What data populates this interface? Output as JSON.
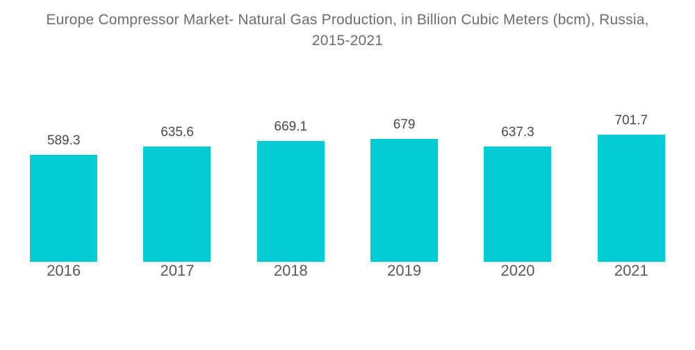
{
  "title": "Europe Compressor Market- Natural Gas Production, in Billion Cubic Meters (bcm), Russia, 2015-2021",
  "colors": {
    "bar": "#02cbd3",
    "title_text": "#6d6d6d",
    "value_label_text": "#4a4a4a",
    "year_label_text": "#595959",
    "background": "#ffffff"
  },
  "chart_data": {
    "type": "bar",
    "title": "Europe Compressor Market- Natural Gas Production, in Billion Cubic Meters (bcm), Russia, 2015-2021",
    "categories": [
      "2016",
      "2017",
      "2018",
      "2019",
      "2020",
      "2021"
    ],
    "values": [
      589.3,
      635.6,
      669.1,
      679,
      637.3,
      701.7
    ],
    "value_labels": [
      "589.3",
      "635.6",
      "669.1",
      "679",
      "637.3",
      "701.7"
    ],
    "xlabel": "",
    "ylabel": "",
    "ylim": [
      0,
      720
    ],
    "grid": false,
    "legend": "none",
    "data_label_position": "above-bars",
    "axis_lines": "none"
  }
}
